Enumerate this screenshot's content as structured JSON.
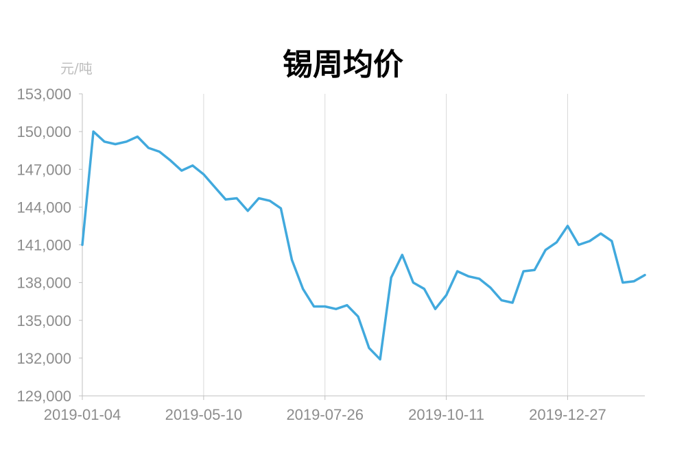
{
  "chart_data": {
    "type": "line",
    "title": "锡周均价",
    "unit_label": "元/吨",
    "xlabel": "",
    "ylabel": "",
    "ylim": [
      129000,
      153000
    ],
    "y_ticks": [
      "153,000",
      "150,000",
      "147,000",
      "144,000",
      "141,000",
      "138,000",
      "135,000",
      "132,000",
      "129,000"
    ],
    "x_tick_labels": [
      "2019-01-04",
      "2019-05-10",
      "2019-07-26",
      "2019-10-11",
      "2019-12-27"
    ],
    "x_tick_indices": [
      0,
      11,
      22,
      33,
      44
    ],
    "grid": "vertical",
    "color": "#41a9dd",
    "series": [
      {
        "values": [
          141000,
          150000,
          149200,
          149000,
          149200,
          149600,
          148700,
          148400,
          147700,
          146900,
          147300,
          146600,
          145600,
          144600,
          144700,
          143700,
          144700,
          144500,
          143900,
          139800,
          137500,
          136100,
          136100,
          135900,
          136200,
          135300,
          132800,
          131900,
          138400,
          140200,
          138000,
          137500,
          135900,
          137000,
          138900,
          138500,
          138300,
          137600,
          136600,
          136400,
          138900,
          139000,
          140600,
          141200,
          142500,
          141000,
          141300,
          141900,
          141300,
          138000,
          138100,
          138600
        ]
      }
    ]
  }
}
